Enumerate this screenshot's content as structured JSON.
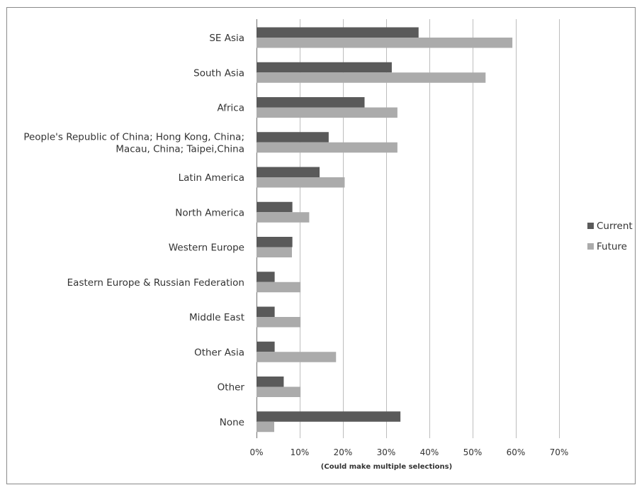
{
  "chart_data": {
    "type": "bar",
    "orientation": "horizontal",
    "categories": [
      [
        "SE Asia"
      ],
      [
        "South Asia"
      ],
      [
        "Africa"
      ],
      [
        "People's Republic of China; Hong Kong, China;",
        "Macau, China; Taipei,China"
      ],
      [
        "Latin America"
      ],
      [
        "North America"
      ],
      [
        "Western Europe"
      ],
      [
        "Eastern Europe & Russian Federation"
      ],
      [
        "Middle East"
      ],
      [
        "Other Asia"
      ],
      [
        "Other"
      ],
      [
        "None"
      ]
    ],
    "series": [
      {
        "name": "Current",
        "color": "#5a5a5a",
        "values": [
          37.5,
          31.3,
          25.0,
          16.7,
          14.6,
          8.3,
          8.3,
          4.2,
          4.2,
          4.2,
          6.3,
          33.3
        ]
      },
      {
        "name": "Future",
        "color": "#ababab",
        "values": [
          59.2,
          53.0,
          32.6,
          32.6,
          20.4,
          12.2,
          8.2,
          10.2,
          10.2,
          18.4,
          10.2,
          4.1
        ]
      }
    ],
    "xlim": [
      0,
      70
    ],
    "x_ticks": [
      "0%",
      "10%",
      "20%",
      "30%",
      "40%",
      "50%",
      "60%",
      "70%"
    ],
    "xlabel": "(Could make multiple selections)",
    "ylabel": "",
    "grid": "vertical",
    "legend_position": "right"
  }
}
